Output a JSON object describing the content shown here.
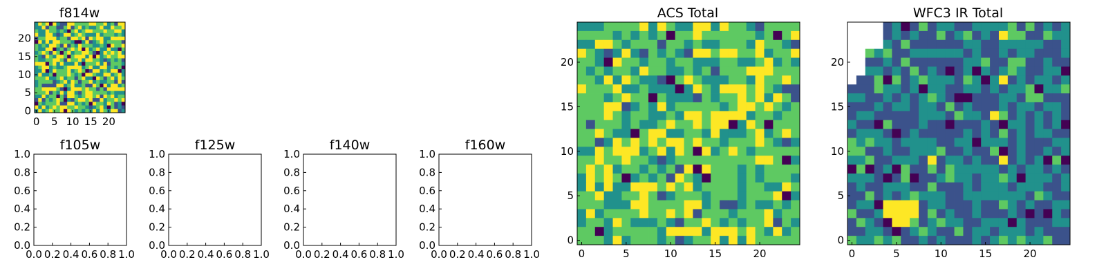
{
  "colormap": [
    "#440154",
    "#3b528b",
    "#21918c",
    "#5ec962",
    "#fde725"
  ],
  "chart_data": [
    {
      "type": "heatmap",
      "title": "f814w",
      "xticks": [
        "0",
        "5",
        "10",
        "15",
        "20"
      ],
      "yticks": [
        "0",
        "5",
        "10",
        "15",
        "20"
      ],
      "xlim": [
        -0.5,
        24.5
      ],
      "ylim": [
        -0.5,
        24.5
      ],
      "grid": false
    },
    {
      "type": "heatmap",
      "title": "f105w",
      "empty": true,
      "xticks": [
        "0.0",
        "0.2",
        "0.4",
        "0.6",
        "0.8",
        "1.0"
      ],
      "yticks": [
        "0.0",
        "0.2",
        "0.4",
        "0.6",
        "0.8",
        "1.0"
      ],
      "xlim": [
        0,
        1
      ],
      "ylim": [
        0,
        1
      ]
    },
    {
      "type": "heatmap",
      "title": "f125w",
      "empty": true,
      "xticks": [
        "0.0",
        "0.2",
        "0.4",
        "0.6",
        "0.8",
        "1.0"
      ],
      "yticks": [
        "0.0",
        "0.2",
        "0.4",
        "0.6",
        "0.8",
        "1.0"
      ],
      "xlim": [
        0,
        1
      ],
      "ylim": [
        0,
        1
      ]
    },
    {
      "type": "heatmap",
      "title": "f140w",
      "empty": true,
      "xticks": [
        "0.0",
        "0.2",
        "0.4",
        "0.6",
        "0.8",
        "1.0"
      ],
      "yticks": [
        "0.0",
        "0.2",
        "0.4",
        "0.6",
        "0.8",
        "1.0"
      ],
      "xlim": [
        0,
        1
      ],
      "ylim": [
        0,
        1
      ]
    },
    {
      "type": "heatmap",
      "title": "f160w",
      "empty": true,
      "xticks": [
        "0.0",
        "0.2",
        "0.4",
        "0.6",
        "0.8",
        "1.0"
      ],
      "yticks": [
        "0.0",
        "0.2",
        "0.4",
        "0.6",
        "0.8",
        "1.0"
      ],
      "xlim": [
        0,
        1
      ],
      "ylim": [
        0,
        1
      ]
    },
    {
      "type": "heatmap",
      "title": "ACS Total",
      "xticks": [
        "0",
        "5",
        "10",
        "15",
        "20"
      ],
      "yticks": [
        "0",
        "5",
        "10",
        "15",
        "20"
      ],
      "xlim": [
        -0.5,
        24.5
      ],
      "ylim": [
        -0.5,
        24.5
      ],
      "grid": false
    },
    {
      "type": "heatmap",
      "title": "WFC3 IR Total",
      "xticks": [
        "0",
        "5",
        "10",
        "15",
        "20"
      ],
      "yticks": [
        "0",
        "5",
        "10",
        "15",
        "20"
      ],
      "xlim": [
        -0.5,
        24.5
      ],
      "ylim": [
        -0.5,
        24.5
      ],
      "grid": false,
      "masked_region": "top-left corner"
    }
  ]
}
